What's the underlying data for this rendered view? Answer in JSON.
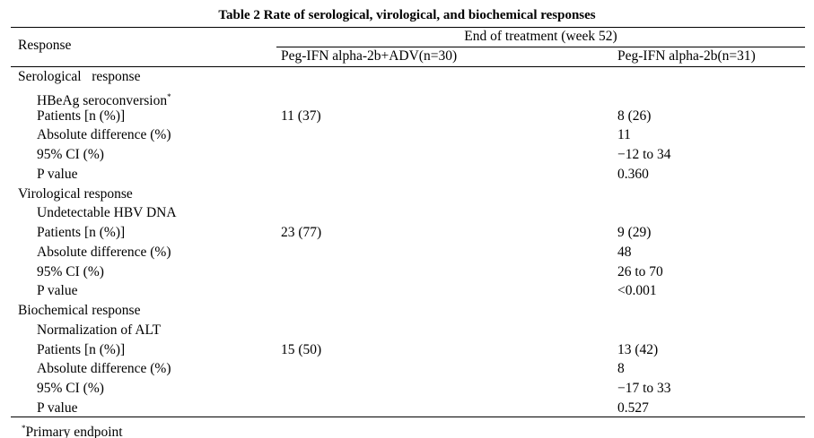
{
  "title": "Table 2 Rate of serological, virological, and biochemical responses",
  "header": {
    "response": "Response",
    "group": "End of treatment (week 52)",
    "columns": [
      "Peg-IFN alpha-2b+ADV(n=30)",
      "Peg-IFN alpha-2b(n=31)"
    ]
  },
  "sections": [
    {
      "title": "Serological   response",
      "subtitle": "HBeAg seroconversion",
      "subtitle_mark": "*",
      "rows": [
        [
          "Patients [n (%)]",
          "11 (37)",
          "8 (26)"
        ],
        [
          "Absolute difference (%)",
          null,
          "11"
        ],
        [
          "95% CI (%)",
          null,
          "−12 to 34"
        ],
        [
          "P value",
          null,
          "0.360"
        ]
      ]
    },
    {
      "title": "Virological response",
      "subtitle": "Undetectable HBV DNA",
      "subtitle_mark": null,
      "rows": [
        [
          "Patients [n (%)]",
          "23 (77)",
          "9 (29)"
        ],
        [
          "Absolute difference (%)",
          null,
          "48"
        ],
        [
          "95% CI (%)",
          null,
          "26 to 70"
        ],
        [
          "P value",
          null,
          "<0.001"
        ]
      ]
    },
    {
      "title": "Biochemical response",
      "subtitle": "Normalization of ALT",
      "subtitle_mark": null,
      "rows": [
        [
          "Patients [n (%)]",
          "15 (50)",
          "13 (42)"
        ],
        [
          "Absolute difference (%)",
          null,
          "8"
        ],
        [
          "95% CI (%)",
          null,
          "−17 to 33"
        ],
        [
          "P value",
          null,
          "0.527"
        ]
      ]
    }
  ],
  "footnote": {
    "mark": "*",
    "text": "Primary endpoint"
  }
}
